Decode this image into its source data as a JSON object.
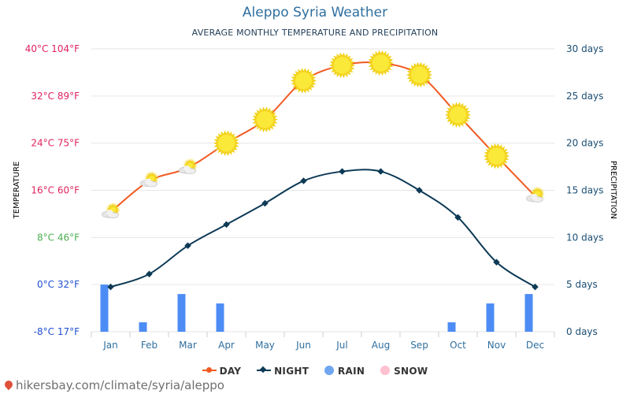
{
  "header": {
    "title": "Aleppo Syria Weather",
    "subtitle": "AVERAGE MONTHLY TEMPERATURE AND PRECIPITATION"
  },
  "footer": {
    "source": "hikersbay.com/climate/syria/aleppo"
  },
  "legend": {
    "day": "DAY",
    "night": "NIGHT",
    "rain": "RAIN",
    "snow": "SNOW"
  },
  "colors": {
    "day": "#f15a22",
    "night": "#0d3a56",
    "rain": "#4d8cf5",
    "snow": "#ffb6c8",
    "grid": "#e6e6e6",
    "left_axis_label": "#1f3c56",
    "right_axis": "#1a4e73"
  },
  "chart_data": {
    "type": "line",
    "title": "Aleppo Syria Weather",
    "subtitle": "AVERAGE MONTHLY TEMPERATURE AND PRECIPITATION",
    "categories": [
      "Jan",
      "Feb",
      "Mar",
      "Apr",
      "May",
      "Jun",
      "Jul",
      "Aug",
      "Sep",
      "Oct",
      "Nov",
      "Dec"
    ],
    "y_left": {
      "label": "TEMPERATURE",
      "unit": "°C",
      "range": [
        -8,
        40
      ],
      "ticks": [
        {
          "value": 40,
          "label": "40°C 104°F",
          "color": "#e0245e"
        },
        {
          "value": 32,
          "label": "32°C 89°F",
          "color": "#e0245e"
        },
        {
          "value": 24,
          "label": "24°C 75°F",
          "color": "#e0245e"
        },
        {
          "value": 16,
          "label": "16°C 60°F",
          "color": "#e0245e"
        },
        {
          "value": 8,
          "label": "8°C 46°F",
          "color": "#4caf50"
        },
        {
          "value": 0,
          "label": "0°C 32°F",
          "color": "#1f4fd1"
        },
        {
          "value": -8,
          "label": "-8°C 17°F",
          "color": "#1f4fd1"
        }
      ]
    },
    "y_right": {
      "label": "PRECIPITATION",
      "unit": "days",
      "range": [
        0,
        30
      ],
      "ticks": [
        {
          "value": 30,
          "label": "30 days"
        },
        {
          "value": 25,
          "label": "25 days"
        },
        {
          "value": 20,
          "label": "20 days"
        },
        {
          "value": 15,
          "label": "15 days"
        },
        {
          "value": 10,
          "label": "10 days"
        },
        {
          "value": 5,
          "label": "5 days"
        },
        {
          "value": 0,
          "label": "0 days"
        }
      ]
    },
    "series": [
      {
        "name": "DAY",
        "axis": "left",
        "values": [
          12.3,
          17.6,
          19.8,
          24.0,
          28.0,
          34.6,
          37.2,
          37.6,
          35.6,
          28.8,
          21.8,
          15.0
        ]
      },
      {
        "name": "NIGHT",
        "axis": "left",
        "values": [
          -0.4,
          1.8,
          6.6,
          10.2,
          13.8,
          17.6,
          19.2,
          19.2,
          16.0,
          11.4,
          3.8,
          -0.4
        ]
      },
      {
        "name": "RAIN",
        "axis": "right",
        "type": "bar",
        "values": [
          5,
          1,
          4,
          3,
          0,
          0,
          0,
          0,
          0,
          1,
          3,
          4
        ]
      },
      {
        "name": "SNOW",
        "axis": "right",
        "type": "bar",
        "values": [
          0,
          0,
          0,
          0,
          0,
          0,
          0,
          0,
          0,
          0,
          0,
          0
        ]
      }
    ],
    "weather_icons": [
      "partly-cloudy-icon",
      "partly-cloudy-icon",
      "partly-cloudy-icon",
      "sun-icon",
      "sun-icon",
      "sun-icon",
      "sun-icon",
      "sun-icon",
      "sun-icon",
      "sun-icon",
      "sun-icon",
      "partly-cloudy-icon"
    ],
    "grid": true,
    "legend_position": "bottom-center"
  }
}
